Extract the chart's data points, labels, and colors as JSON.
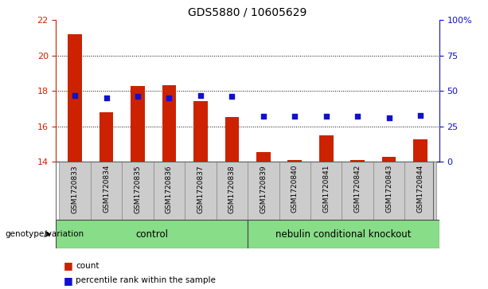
{
  "title": "GDS5880 / 10605629",
  "samples": [
    "GSM1720833",
    "GSM1720834",
    "GSM1720835",
    "GSM1720836",
    "GSM1720837",
    "GSM1720838",
    "GSM1720839",
    "GSM1720840",
    "GSM1720841",
    "GSM1720842",
    "GSM1720843",
    "GSM1720844"
  ],
  "bar_values": [
    21.2,
    16.8,
    18.3,
    18.35,
    17.45,
    16.55,
    14.55,
    14.1,
    15.5,
    14.1,
    14.3,
    15.25
  ],
  "percentile_values": [
    47,
    45,
    46,
    45,
    47,
    46,
    32,
    32,
    32,
    32,
    31,
    33
  ],
  "ylim_left": [
    14,
    22
  ],
  "ylim_right": [
    0,
    100
  ],
  "yticks_left": [
    14,
    16,
    18,
    20,
    22
  ],
  "yticks_right": [
    0,
    25,
    50,
    75,
    100
  ],
  "ytick_labels_right": [
    "0",
    "25",
    "50",
    "75",
    "100%"
  ],
  "bar_color": "#cc2200",
  "dot_color": "#1111cc",
  "bar_bottom": 14,
  "bar_width": 0.45,
  "control_label": "control",
  "knockout_label": "nebulin conditional knockout",
  "group_label_prefix": "genotype/variation",
  "group_area_color": "#88dd88",
  "sample_area_color": "#cccccc",
  "legend_count_label": "count",
  "legend_pct_label": "percentile rank within the sample",
  "grid_yticks": [
    16,
    18,
    20
  ],
  "left_color": "#cc2200",
  "right_color": "#1111cc"
}
